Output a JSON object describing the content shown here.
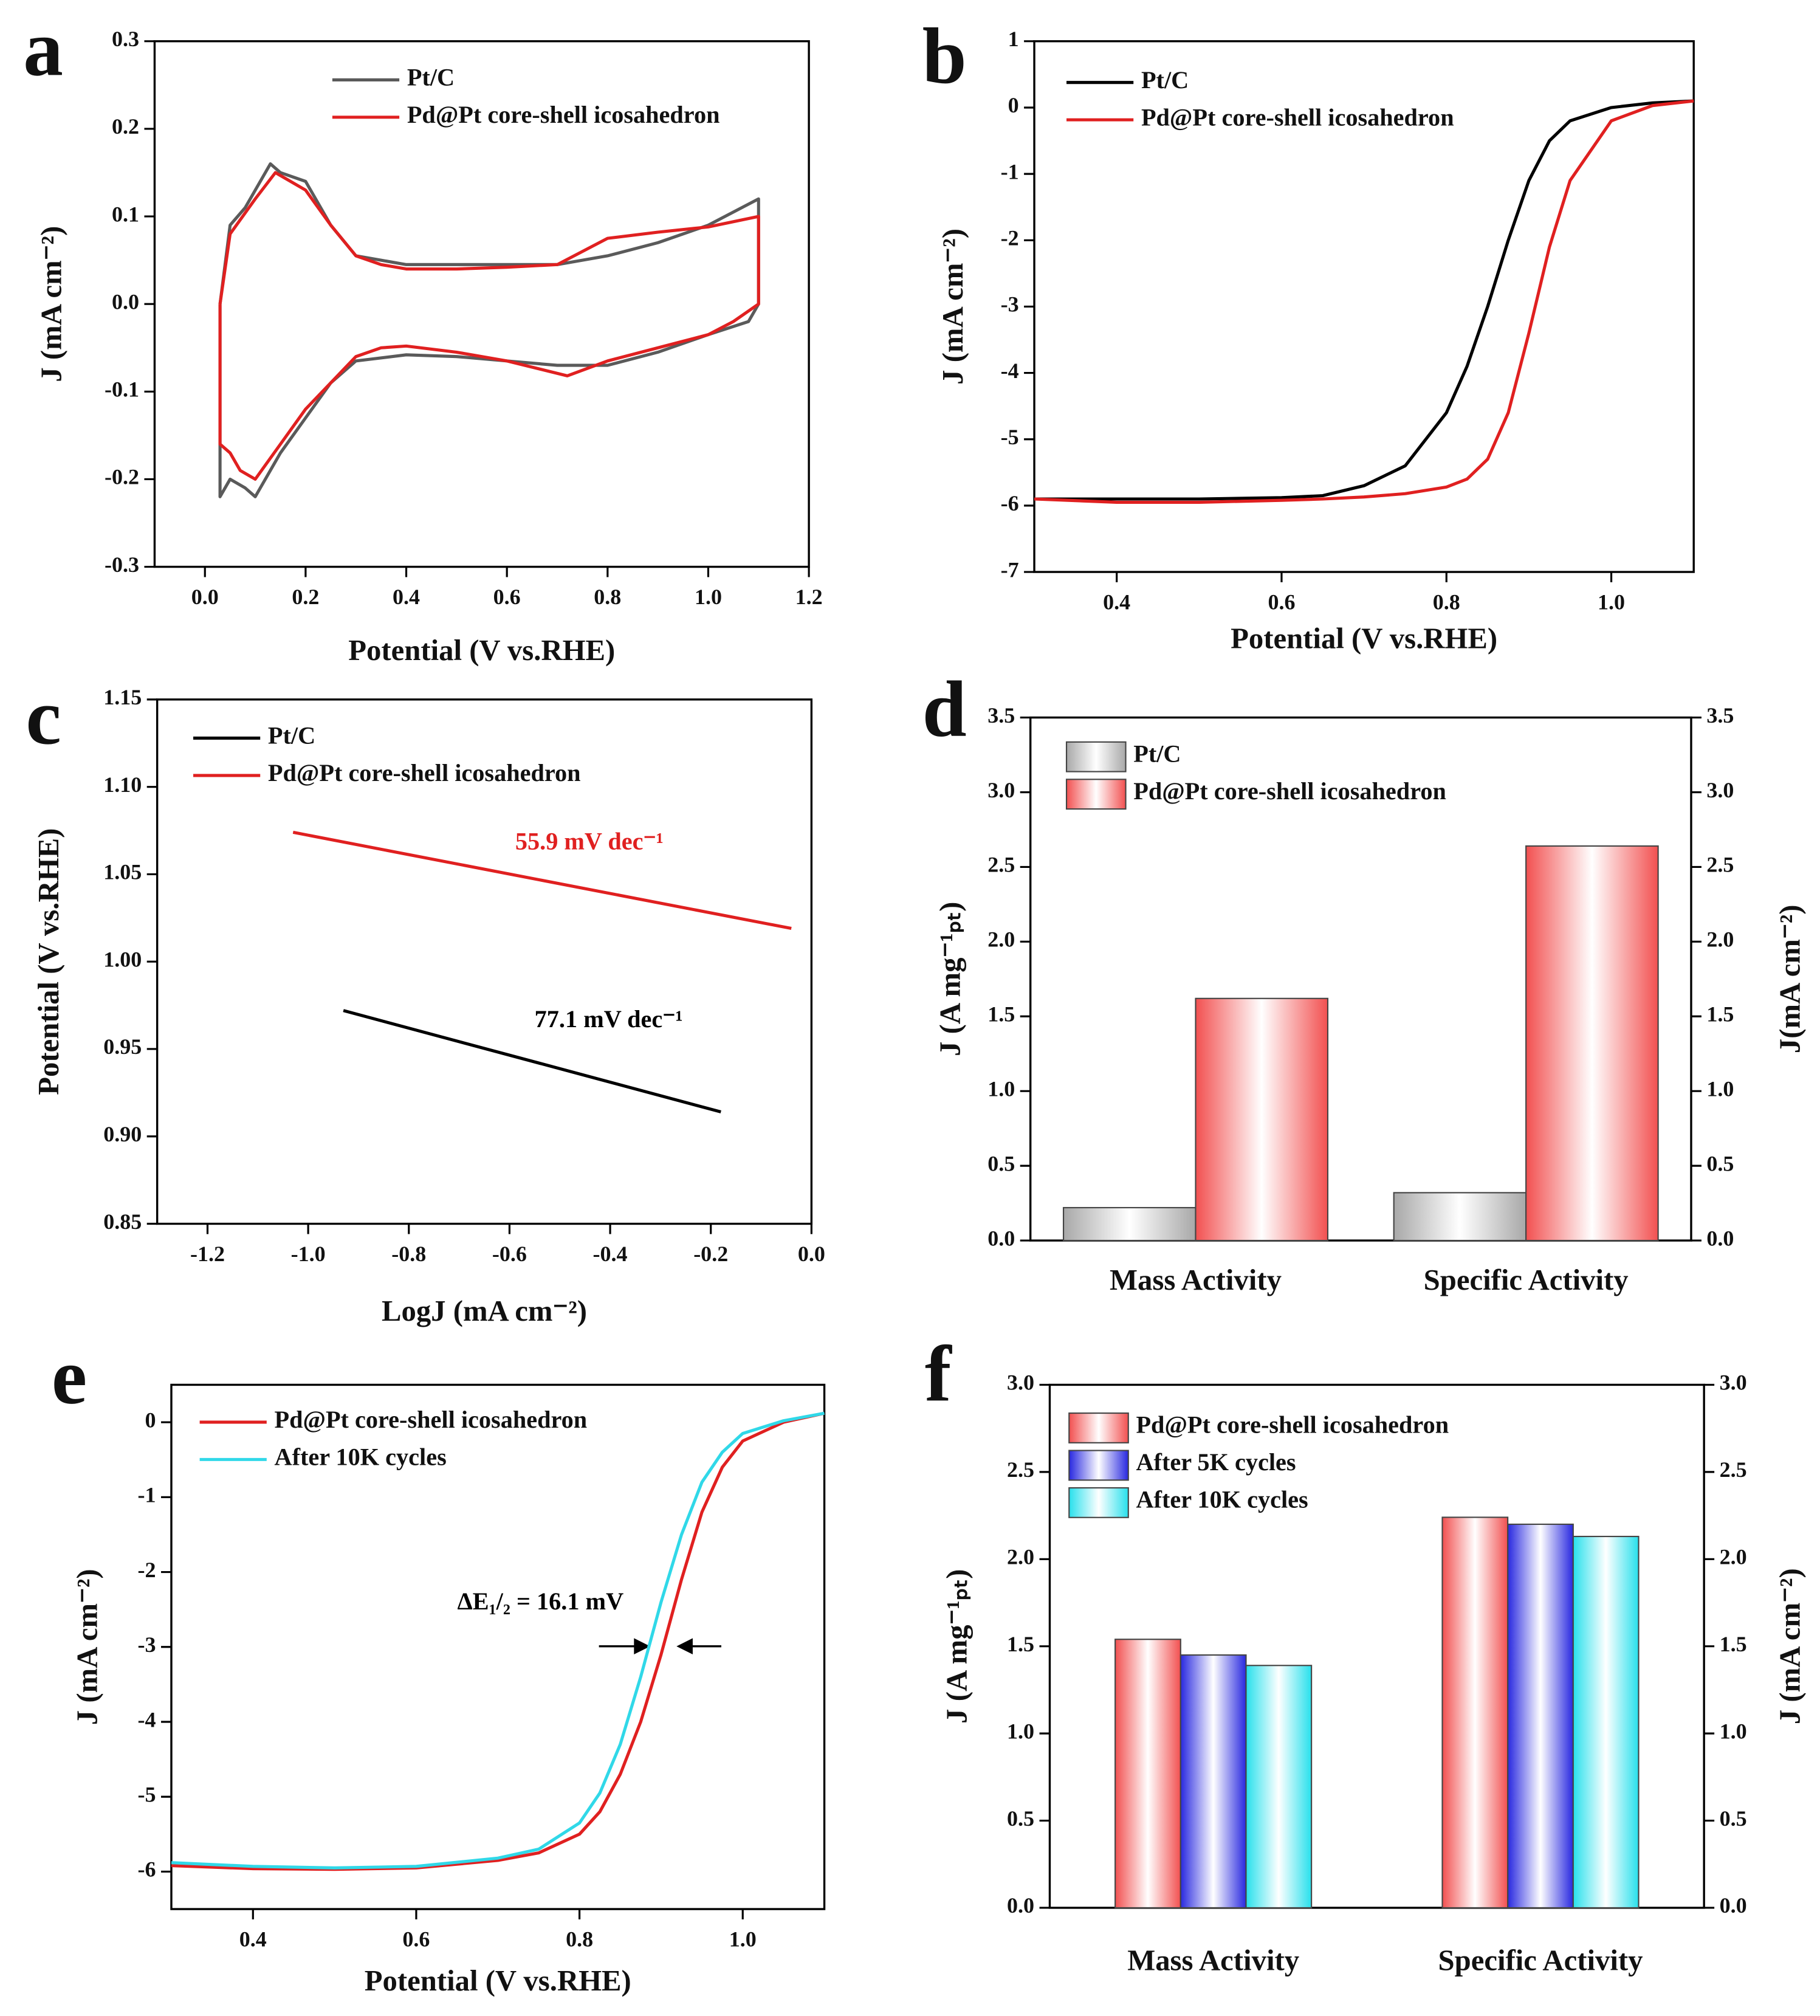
{
  "chart_data": [
    {
      "type": "line",
      "label": "a",
      "xlabel": "Potential (V vs.RHE)",
      "ylabel": "J (mA cm⁻²)",
      "xlim": [
        -0.1,
        1.2
      ],
      "ylim": [
        -0.3,
        0.3
      ],
      "xticks": [
        {
          "value": 0,
          "label": "0.0"
        },
        0.2,
        0.4,
        0.6,
        0.8,
        {
          "value": 1,
          "label": "1.0"
        },
        1.2
      ],
      "yticks": [
        -0.3,
        -0.2,
        -0.1,
        {
          "value": 0,
          "label": "0.0"
        },
        0.1,
        0.2,
        0.3
      ],
      "series": [
        {
          "name": "Pt/C",
          "color": "#5a5a5a",
          "x": [
            0.03,
            0.05,
            0.08,
            0.1,
            0.13,
            0.15,
            0.2,
            0.25,
            0.3,
            0.35,
            0.4,
            0.5,
            0.6,
            0.7,
            0.8,
            0.9,
            1.0,
            1.1,
            1.1,
            1.08,
            1.0,
            0.9,
            0.8,
            0.7,
            0.6,
            0.5,
            0.4,
            0.3,
            0.25,
            0.2,
            0.15,
            0.1,
            0.08,
            0.05,
            0.03,
            0.03
          ],
          "values": [
            0.0,
            0.09,
            0.11,
            0.13,
            0.16,
            0.15,
            0.14,
            0.09,
            0.055,
            0.05,
            0.045,
            0.045,
            0.045,
            0.045,
            0.055,
            0.07,
            0.09,
            0.12,
            0.0,
            -0.02,
            -0.035,
            -0.055,
            -0.07,
            -0.07,
            -0.065,
            -0.06,
            -0.058,
            -0.065,
            -0.09,
            -0.13,
            -0.17,
            -0.22,
            -0.21,
            -0.2,
            -0.22,
            0.0
          ]
        },
        {
          "name": "Pd@Pt core-shell icosahedron",
          "color": "#e02020",
          "x": [
            0.03,
            0.05,
            0.1,
            0.14,
            0.2,
            0.25,
            0.3,
            0.35,
            0.4,
            0.5,
            0.6,
            0.7,
            0.8,
            0.9,
            1.0,
            1.1,
            1.1,
            1.05,
            1.0,
            0.9,
            0.8,
            0.72,
            0.6,
            0.5,
            0.4,
            0.35,
            0.3,
            0.25,
            0.2,
            0.15,
            0.1,
            0.07,
            0.05,
            0.03,
            0.03
          ],
          "values": [
            0.0,
            0.08,
            0.12,
            0.15,
            0.13,
            0.09,
            0.055,
            0.045,
            0.04,
            0.04,
            0.042,
            0.045,
            0.075,
            0.082,
            0.088,
            0.1,
            0.0,
            -0.02,
            -0.035,
            -0.05,
            -0.065,
            -0.082,
            -0.065,
            -0.055,
            -0.048,
            -0.05,
            -0.06,
            -0.09,
            -0.12,
            -0.16,
            -0.2,
            -0.19,
            -0.17,
            -0.16,
            0.0
          ]
        }
      ]
    },
    {
      "type": "line",
      "label": "b",
      "xlabel": "Potential (V vs.RHE)",
      "ylabel": "J (mA cm⁻²)",
      "xlim": [
        0.3,
        1.1
      ],
      "ylim": [
        -7,
        1
      ],
      "xticks": [
        0.4,
        0.6,
        0.8,
        {
          "value": 1,
          "label": "1.0"
        }
      ],
      "yticks": [
        -7,
        -6,
        -5,
        -4,
        -3,
        -2,
        -1,
        0,
        1
      ],
      "series": [
        {
          "name": "Pt/C",
          "color": "#000000",
          "x": [
            0.3,
            0.4,
            0.5,
            0.6,
            0.65,
            0.7,
            0.75,
            0.8,
            0.825,
            0.85,
            0.875,
            0.9,
            0.925,
            0.95,
            1.0,
            1.05,
            1.1
          ],
          "values": [
            -5.9,
            -5.9,
            -5.9,
            -5.88,
            -5.85,
            -5.7,
            -5.4,
            -4.6,
            -3.9,
            -3.0,
            -2.0,
            -1.1,
            -0.5,
            -0.2,
            0.0,
            0.07,
            0.1
          ]
        },
        {
          "name": "Pd@Pt core-shell icosahedron",
          "color": "#e02020",
          "x": [
            0.3,
            0.4,
            0.5,
            0.6,
            0.65,
            0.7,
            0.75,
            0.8,
            0.825,
            0.85,
            0.875,
            0.9,
            0.925,
            0.95,
            1.0,
            1.05,
            1.1
          ],
          "values": [
            -5.9,
            -5.95,
            -5.95,
            -5.92,
            -5.9,
            -5.87,
            -5.82,
            -5.72,
            -5.6,
            -5.3,
            -4.6,
            -3.4,
            -2.1,
            -1.1,
            -0.2,
            0.03,
            0.1
          ]
        }
      ]
    },
    {
      "type": "line",
      "label": "c",
      "xlabel": "LogJ (mA cm⁻²)",
      "ylabel": "Potential (V vs.RHE)",
      "xlim": [
        -1.3,
        0.0
      ],
      "ylim": [
        0.85,
        1.15
      ],
      "xticks": [
        -1.2,
        {
          "value": -1,
          "label": "-1.0"
        },
        -0.8,
        -0.6,
        -0.4,
        -0.2,
        {
          "value": 0,
          "label": "0.0"
        }
      ],
      "yticks": [
        0.85,
        {
          "value": 0.9,
          "label": "0.90"
        },
        0.95,
        {
          "value": 1,
          "label": "1.00"
        },
        1.05,
        {
          "value": 1.1,
          "label": "1.10"
        },
        1.15
      ],
      "series": [
        {
          "name": "Pt/C",
          "color": "#000000",
          "x": [
            -0.93,
            -0.18
          ],
          "values": [
            0.972,
            0.914
          ]
        },
        {
          "name": "Pd@Pt core-shell icosahedron",
          "color": "#e02020",
          "x": [
            -1.03,
            -0.04
          ],
          "values": [
            1.074,
            1.019
          ]
        }
      ],
      "annotations": [
        {
          "text": "55.9 mV dec⁻¹",
          "color": "#e02020"
        },
        {
          "text": "77.1 mV dec⁻¹",
          "color": "#000000"
        }
      ]
    },
    {
      "type": "bar",
      "label": "d",
      "ylabel": "J (A mg⁻¹ₚₜ)",
      "y2label": "J(mA cm⁻²)",
      "categories": [
        "Mass Activity",
        "Specific Activity"
      ],
      "ylim": [
        0,
        3.5
      ],
      "y2lim": [
        0,
        3.5
      ],
      "yticks": [
        {
          "value": 0,
          "label": "0.0"
        },
        0.5,
        {
          "value": 1,
          "label": "1.0"
        },
        1.5,
        {
          "value": 2,
          "label": "2.0"
        },
        2.5,
        {
          "value": 3,
          "label": "3.0"
        },
        3.5
      ],
      "y2ticks": [
        {
          "value": 0,
          "label": "0.0"
        },
        0.5,
        {
          "value": 1,
          "label": "1.0"
        },
        1.5,
        {
          "value": 2,
          "label": "2.0"
        },
        2.5,
        {
          "value": 3,
          "label": "3.0"
        },
        3.5
      ],
      "series": [
        {
          "name": "Pt/C",
          "color": "#a8a8a8",
          "values": [
            0.22,
            0.32
          ]
        },
        {
          "name": "Pd@Pt core-shell icosahedron",
          "color": "#f25050",
          "values": [
            1.62,
            2.64
          ]
        }
      ]
    },
    {
      "type": "line",
      "label": "e",
      "xlabel": "Potential (V vs.RHE)",
      "ylabel": "J (mA cm⁻²)",
      "xlim": [
        0.3,
        1.1
      ],
      "ylim": [
        -6.5,
        0.5
      ],
      "xticks": [
        0.4,
        0.6,
        0.8,
        {
          "value": 1,
          "label": "1.0"
        }
      ],
      "yticks": [
        -6,
        -5,
        -4,
        -3,
        -2,
        -1,
        0
      ],
      "series": [
        {
          "name": "Pd@Pt core-shell icosahedron",
          "color": "#e02020",
          "x": [
            0.3,
            0.4,
            0.5,
            0.6,
            0.7,
            0.75,
            0.8,
            0.825,
            0.85,
            0.875,
            0.9,
            0.925,
            0.95,
            0.975,
            1.0,
            1.05,
            1.1
          ],
          "values": [
            -5.92,
            -5.96,
            -5.97,
            -5.95,
            -5.85,
            -5.75,
            -5.5,
            -5.2,
            -4.7,
            -4.0,
            -3.1,
            -2.1,
            -1.2,
            -0.6,
            -0.25,
            0.0,
            0.12
          ]
        },
        {
          "name": "After 10K cycles",
          "color": "#30d8e8",
          "x": [
            0.3,
            0.4,
            0.5,
            0.6,
            0.7,
            0.75,
            0.8,
            0.825,
            0.85,
            0.875,
            0.9,
            0.925,
            0.95,
            0.975,
            1.0,
            1.05,
            1.1
          ],
          "values": [
            -5.88,
            -5.93,
            -5.95,
            -5.93,
            -5.82,
            -5.7,
            -5.35,
            -4.95,
            -4.3,
            -3.4,
            -2.4,
            -1.5,
            -0.8,
            -0.4,
            -0.15,
            0.02,
            0.12
          ]
        }
      ],
      "annotations": [
        {
          "text": "ΔE₁/₂ = 16.1 mV",
          "color": "#000000"
        }
      ]
    },
    {
      "type": "bar",
      "label": "f",
      "ylabel": "J (A mg⁻¹ₚₜ)",
      "y2label": "J (mA cm⁻²)",
      "categories": [
        "Mass Activity",
        "Specific Activity"
      ],
      "ylim": [
        0,
        3.0
      ],
      "y2lim": [
        0,
        3.0
      ],
      "yticks": [
        {
          "value": 0,
          "label": "0.0"
        },
        0.5,
        {
          "value": 1,
          "label": "1.0"
        },
        1.5,
        {
          "value": 2,
          "label": "2.0"
        },
        2.5,
        {
          "value": 3,
          "label": "3.0"
        }
      ],
      "y2ticks": [
        {
          "value": 0,
          "label": "0.0"
        },
        0.5,
        {
          "value": 1,
          "label": "1.0"
        },
        1.5,
        {
          "value": 2,
          "label": "2.0"
        },
        2.5,
        {
          "value": 3,
          "label": "3.0"
        }
      ],
      "series": [
        {
          "name": "Pd@Pt core-shell icosahedron",
          "color": "#f25050",
          "values": [
            1.54,
            2.24
          ]
        },
        {
          "name": "After 5K cycles",
          "color": "#2828e0",
          "values": [
            1.45,
            2.2
          ]
        },
        {
          "name": "After 10K cycles",
          "color": "#28e0ec",
          "values": [
            1.39,
            2.13
          ]
        }
      ]
    }
  ]
}
